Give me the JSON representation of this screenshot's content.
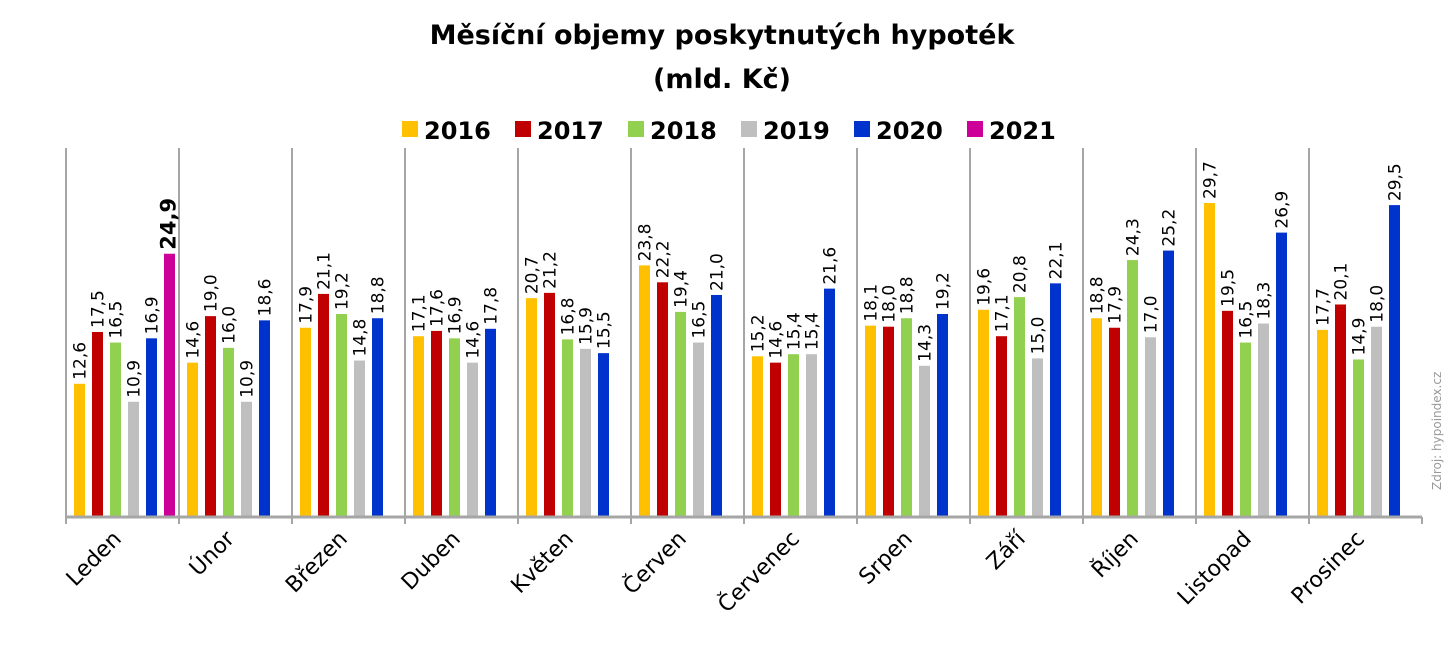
{
  "chart_data": {
    "type": "bar",
    "title": "Měsíční objemy poskytnutých hypoték",
    "subtitle": "(mld. Kč)",
    "source": "Zdroj: hypoindex.cz",
    "legend_position": "top",
    "grid": false,
    "ylim": [
      0,
      31
    ],
    "categories": [
      "Leden",
      "Únor",
      "Březen",
      "Duben",
      "Květen",
      "Červen",
      "Červenec",
      "Srpen",
      "Září",
      "Říjen",
      "Listopad",
      "Prosinec"
    ],
    "series": [
      {
        "name": "2016",
        "color": "#FFC000",
        "values": [
          12.6,
          14.6,
          17.9,
          17.1,
          20.7,
          23.8,
          15.2,
          18.1,
          19.6,
          18.8,
          29.7,
          17.7
        ],
        "labels": [
          "12,6",
          "14,6",
          "17,9",
          "17,1",
          "20,7",
          "23,8",
          "15,2",
          "18,1",
          "19,6",
          "18,8",
          "29,7",
          "17,7"
        ]
      },
      {
        "name": "2017",
        "color": "#C00000",
        "values": [
          17.5,
          19.0,
          21.1,
          17.6,
          21.2,
          22.2,
          14.6,
          18.0,
          17.1,
          17.9,
          19.5,
          20.1
        ],
        "labels": [
          "17,5",
          "19,0",
          "21,1",
          "17,6",
          "21,2",
          "22,2",
          "14,6",
          "18,0",
          "17,1",
          "17,9",
          "19,5",
          "20,1"
        ]
      },
      {
        "name": "2018",
        "color": "#92D050",
        "values": [
          16.5,
          16.0,
          19.2,
          16.9,
          16.8,
          19.4,
          15.4,
          18.8,
          20.8,
          24.3,
          16.5,
          14.9
        ],
        "labels": [
          "16,5",
          "16,0",
          "19,2",
          "16,9",
          "16,8",
          "19,4",
          "15,4",
          "18,8",
          "20,8",
          "24,3",
          "16,5",
          "14,9"
        ]
      },
      {
        "name": "2019",
        "color": "#BFBFBF",
        "values": [
          10.9,
          10.9,
          14.8,
          14.6,
          15.9,
          16.5,
          15.4,
          14.3,
          15.0,
          17.0,
          18.3,
          18.0
        ],
        "labels": [
          "10,9",
          "10,9",
          "14,8",
          "14,6",
          "15,9",
          "16,5",
          "15,4",
          "14,3",
          "15,0",
          "17,0",
          "18,3",
          "18,0"
        ]
      },
      {
        "name": "2020",
        "color": "#0033CC",
        "values": [
          16.9,
          18.6,
          18.8,
          17.8,
          15.5,
          21.0,
          21.6,
          19.2,
          22.1,
          25.2,
          26.9,
          29.5
        ],
        "labels": [
          "16,9",
          "18,6",
          "18,8",
          "17,8",
          "15,5",
          "21,0",
          "21,6",
          "19,2",
          "22,1",
          "25,2",
          "26,9",
          "29,5"
        ]
      },
      {
        "name": "2021",
        "color": "#CC0099",
        "values": [
          24.9,
          null,
          null,
          null,
          null,
          null,
          null,
          null,
          null,
          null,
          null,
          null
        ],
        "labels": [
          "24,9",
          "",
          "",
          "",
          "",
          "",
          "",
          "",
          "",
          "",
          "",
          ""
        ],
        "highlight": true
      }
    ]
  }
}
